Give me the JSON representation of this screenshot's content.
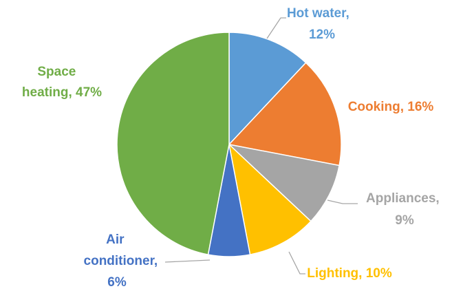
{
  "chart_data": {
    "type": "pie",
    "labels": [
      "Hot water, 12%",
      "Cooking, 16%",
      "Appliances, 9%",
      "Lighting, 10%",
      "Air conditioner, 6%",
      "Space heating, 47%"
    ],
    "values": [
      12,
      16,
      9,
      10,
      6,
      47
    ],
    "colors": [
      "#5b9bd5",
      "#ed7d31",
      "#a5a5a5",
      "#ffc000",
      "#4472c4",
      "#70ad47"
    ]
  }
}
